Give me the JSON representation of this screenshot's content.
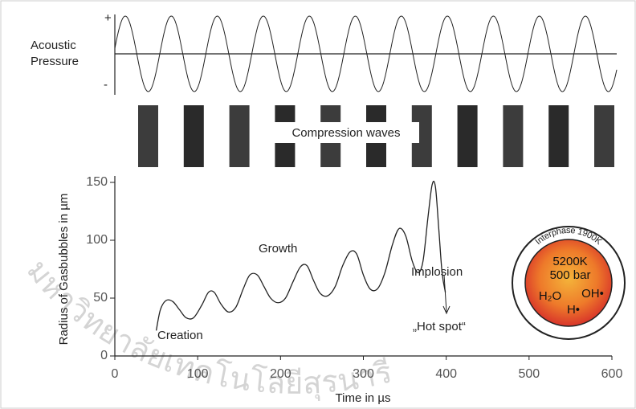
{
  "pressure_panel": {
    "label_line1": "Acoustic",
    "label_line2": "Pressure",
    "plus": "+",
    "minus": "-"
  },
  "compression_label": "Compression waves",
  "watermark": "มหาวิทยาลัยเทคโนโลยีสุรนารี",
  "chart_data": {
    "type": "line",
    "x_label": "Time in µs",
    "y_label": "Radius of Gasbubbles in µm",
    "xlim": [
      0,
      600
    ],
    "ylim": [
      0,
      150
    ],
    "xticks": [
      0,
      100,
      200,
      300,
      400,
      500,
      600
    ],
    "yticks": [
      0,
      50,
      100,
      150
    ],
    "series": [
      {
        "color": "#222222",
        "x": [
          50,
          55,
          62,
          70,
          78,
          86,
          95,
          105,
          113,
          120,
          128,
          137,
          146,
          155,
          163,
          172,
          180,
          188,
          197,
          206,
          215,
          224,
          232,
          240,
          248,
          257,
          266,
          275,
          284,
          292,
          300,
          308,
          317,
          326,
          335,
          343,
          351,
          359,
          366,
          372,
          378,
          383,
          387,
          391,
          395,
          399
        ],
        "values": [
          22,
          40,
          48,
          47,
          40,
          33,
          33,
          44,
          55,
          55,
          45,
          38,
          42,
          58,
          70,
          70,
          60,
          50,
          46,
          50,
          64,
          77,
          78,
          65,
          54,
          52,
          60,
          78,
          90,
          88,
          70,
          58,
          58,
          72,
          96,
          110,
          104,
          82,
          72,
          82,
          120,
          148,
          146,
          110,
          72,
          55
        ]
      }
    ],
    "annotations": {
      "creation": "Creation",
      "growth": "Growth",
      "implosion": "Implosion",
      "hot_spot": "„Hot spot“"
    },
    "inset": {
      "interphase": "Interphase 1900K",
      "temperature": "5200K",
      "pressure": "500 bar",
      "water": "H₂O",
      "hydroxyl": "OH•",
      "hydrogen": "H•"
    }
  }
}
